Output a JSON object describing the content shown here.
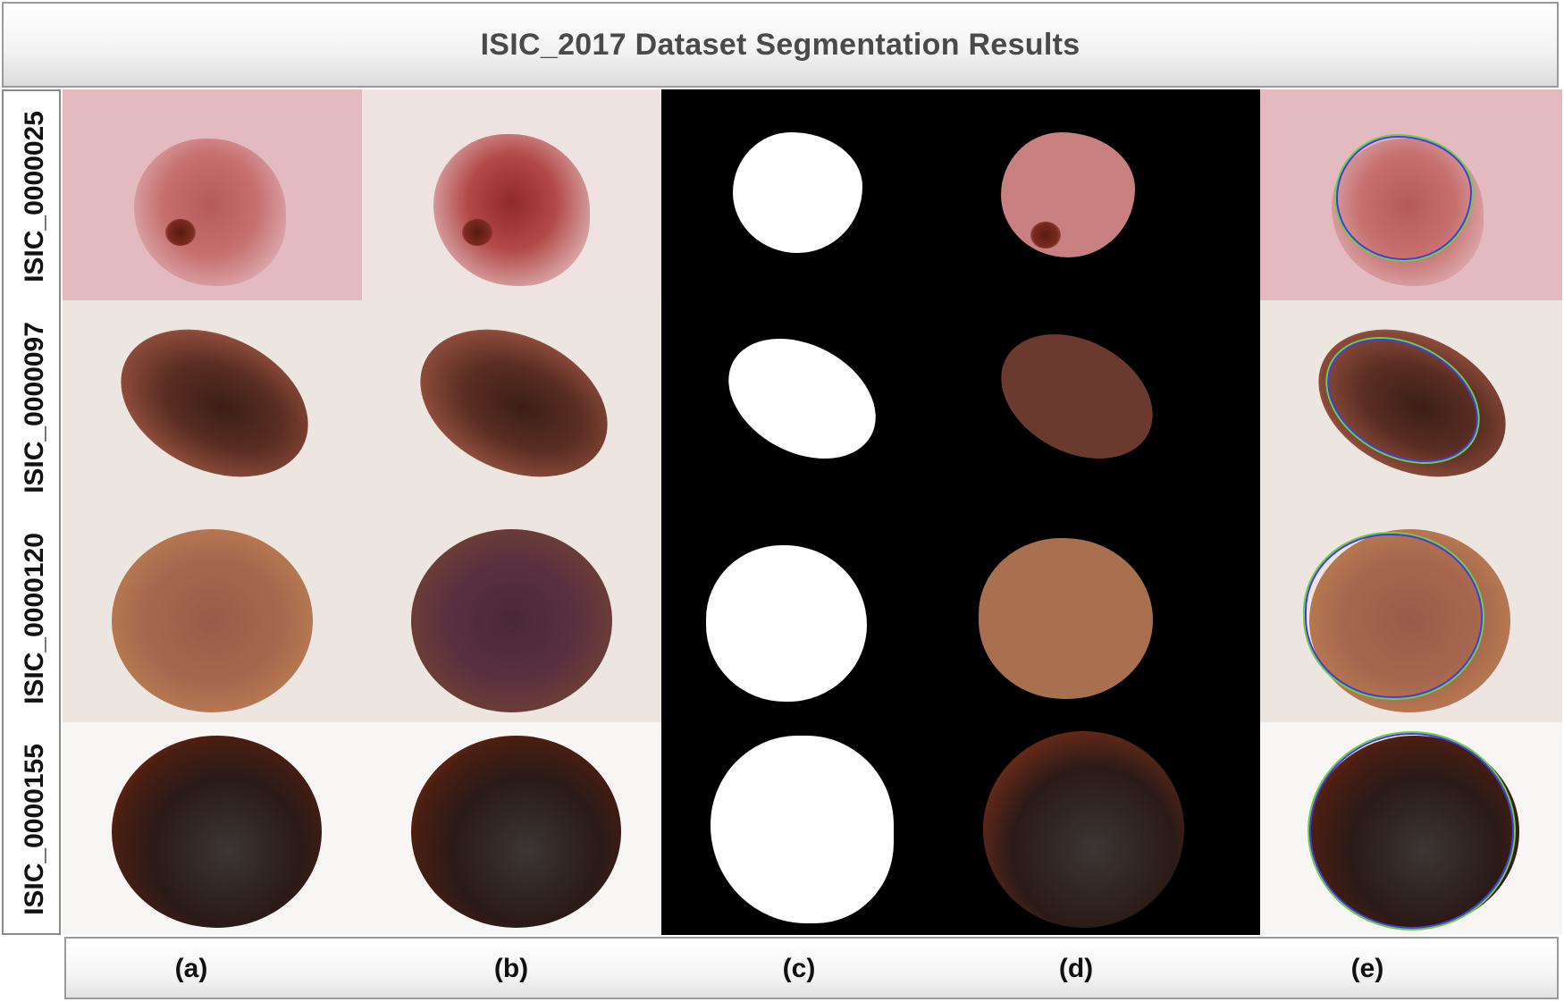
{
  "title": "ISIC_2017 Dataset Segmentation Results",
  "row_labels": [
    "ISIC_0000025",
    "ISIC_0000097",
    "ISIC_0000120",
    "ISIC_0000155"
  ],
  "column_labels": [
    "(a)",
    "(b)",
    "(c)",
    "(d)",
    "(e)"
  ],
  "colors": {
    "mask_background": "#000000",
    "mask_foreground": "#ffffff",
    "outline_prediction": "#4a3ad8",
    "outline_ground_truth": "#6ad04a"
  }
}
